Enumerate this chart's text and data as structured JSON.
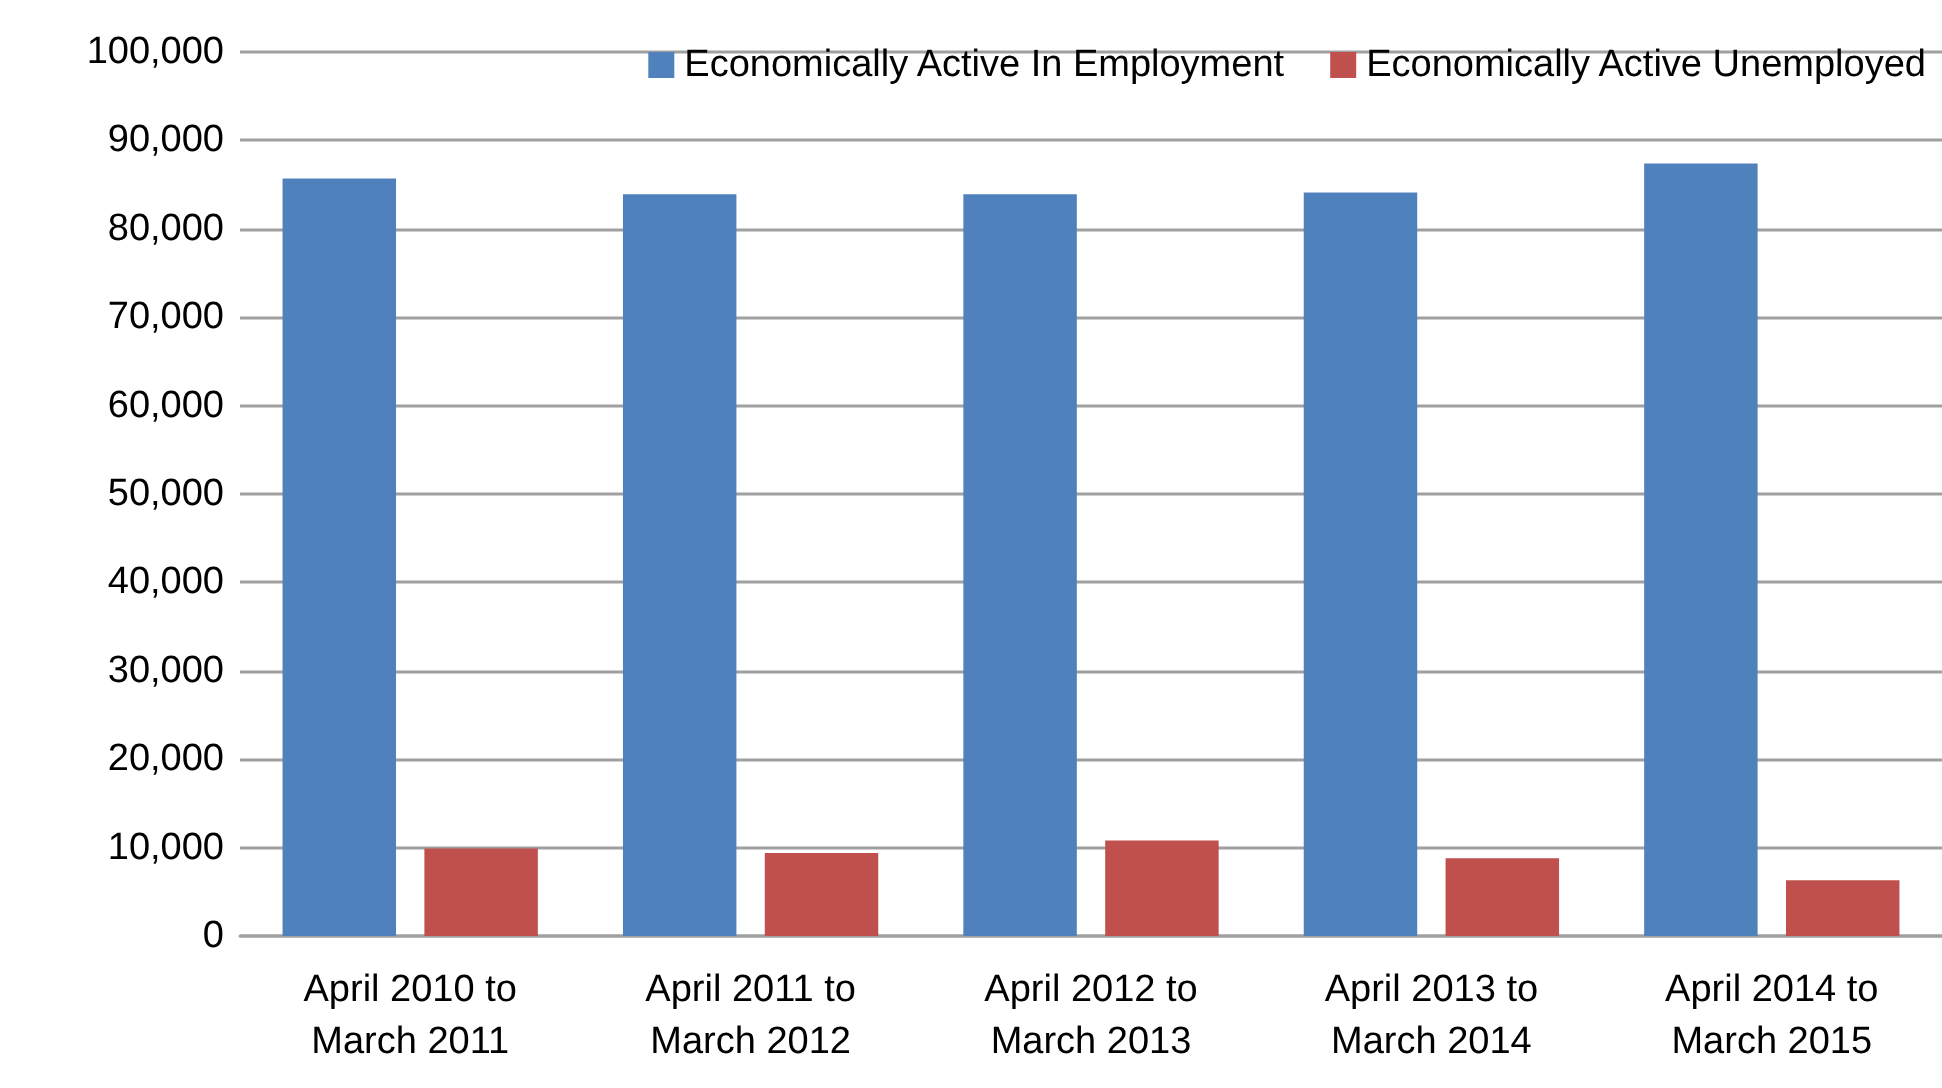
{
  "chart_data": {
    "type": "bar",
    "categories": [
      "April 2010 to\nMarch 2011",
      "April 2011 to\nMarch 2012",
      "April 2012 to\nMarch 2013",
      "April 2013 to\nMarch 2014",
      "April 2014 to\nMarch 2015"
    ],
    "series": [
      {
        "name": "Economically Active In Employment",
        "color": "#4f81bd",
        "values": [
          85700,
          83900,
          83900,
          84100,
          87400
        ]
      },
      {
        "name": "Economically Active Unemployed",
        "color": "#c0504d",
        "values": [
          9900,
          9400,
          10800,
          8800,
          6300
        ]
      }
    ],
    "ylim": [
      0,
      100000
    ],
    "yticks": [
      0,
      {
        "value": 10000,
        "label": "10,000"
      },
      {
        "value": 20000,
        "label": "20,000"
      },
      {
        "value": 30000,
        "label": "30,000"
      },
      {
        "value": 40000,
        "label": "40,000"
      },
      {
        "value": 50000,
        "label": "50,000"
      },
      {
        "value": 60000,
        "label": "60,000"
      },
      {
        "value": 70000,
        "label": "70,000"
      },
      {
        "value": 80000,
        "label": "80,000"
      },
      {
        "value": 90000,
        "label": "90,000"
      },
      {
        "value": 100000,
        "label": "100,000"
      }
    ],
    "grid": "y",
    "legend": "top right"
  }
}
